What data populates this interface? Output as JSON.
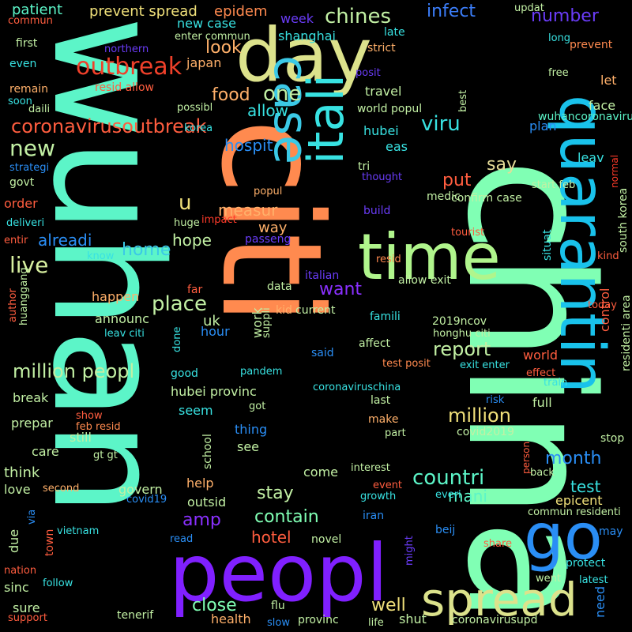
{
  "words": [
    {
      "text": "china",
      "color": "#80ffb4"
    },
    {
      "text": "wuhan",
      "color": "#5cf5c8"
    },
    {
      "text": "citi",
      "color": "#ff8a4f"
    },
    {
      "text": "day",
      "color": "#dce28c"
    },
    {
      "text": "itali",
      "color": "#38e2e2"
    },
    {
      "text": "case",
      "color": "#3bc9e6"
    },
    {
      "text": "quarantin",
      "color": "#19c2eb"
    },
    {
      "text": "time",
      "color": "#b0f58c"
    },
    {
      "text": "go",
      "color": "#2a8ef5"
    },
    {
      "text": "peopl",
      "color": "#8020ff"
    },
    {
      "text": "spread",
      "color": "#dce28c"
    },
    {
      "text": "outbreak",
      "color": "#f0402a"
    },
    {
      "text": "coronavirusoutbreak",
      "color": "#ff5d3f"
    },
    {
      "text": "new",
      "color": "#c2f0a4"
    },
    {
      "text": "chines",
      "color": "#c2f0a4"
    },
    {
      "text": "infect",
      "color": "#3b7df8"
    },
    {
      "text": "number",
      "color": "#6a3cf8"
    },
    {
      "text": "one",
      "color": "#c2f0a4"
    },
    {
      "text": "allow",
      "color": "#38e2e2"
    },
    {
      "text": "food",
      "color": "#ffb06a"
    },
    {
      "text": "look",
      "color": "#ffb06a"
    },
    {
      "text": "viru",
      "color": "#38e2e2"
    },
    {
      "text": "hospit",
      "color": "#2a8ef5"
    },
    {
      "text": "say",
      "color": "#e6dc98"
    },
    {
      "text": "put",
      "color": "#ff5d3f"
    },
    {
      "text": "measur",
      "color": "#ffb06a"
    },
    {
      "text": "u",
      "color": "#f0e07a"
    },
    {
      "text": "alreadi",
      "color": "#2a8ef5"
    },
    {
      "text": "home",
      "color": "#3bc9e6"
    },
    {
      "text": "hope",
      "color": "#c2f0a4"
    },
    {
      "text": "place",
      "color": "#c2f0a4"
    },
    {
      "text": "live",
      "color": "#d8f0a0"
    },
    {
      "text": "want",
      "color": "#8a30ff"
    },
    {
      "text": "report",
      "color": "#c2f0a4"
    },
    {
      "text": "million peopl",
      "color": "#c2f0a4"
    },
    {
      "text": "million",
      "color": "#f0e07a"
    },
    {
      "text": "countri",
      "color": "#5cf5c8"
    },
    {
      "text": "month",
      "color": "#2a8ef5"
    },
    {
      "text": "amp",
      "color": "#8a30ff"
    },
    {
      "text": "contain",
      "color": "#80ffb4"
    },
    {
      "text": "stay",
      "color": "#c2f0a4"
    },
    {
      "text": "test",
      "color": "#38e2e2"
    },
    {
      "text": "close",
      "color": "#80ffb4"
    },
    {
      "text": "well",
      "color": "#f0e07a"
    },
    {
      "text": "hotel",
      "color": "#ff5d3f"
    },
    {
      "text": "mani",
      "color": "#5cf5c8"
    },
    {
      "text": "epicent",
      "color": "#f0e07a"
    },
    {
      "text": "patient",
      "color": "#5cf5c8"
    },
    {
      "text": "prevent spread",
      "color": "#f0e07a"
    },
    {
      "text": "epidem",
      "color": "#ff8a4f"
    },
    {
      "text": "week",
      "color": "#6a3cf8"
    },
    {
      "text": "shanghai",
      "color": "#38e2e2"
    },
    {
      "text": "new case",
      "color": "#38e2e2"
    },
    {
      "text": "enter commun",
      "color": "#c2f0a4"
    },
    {
      "text": "japan",
      "color": "#ffb06a"
    },
    {
      "text": "late",
      "color": "#38e2e2"
    },
    {
      "text": "strict",
      "color": "#ffb06a"
    },
    {
      "text": "travel",
      "color": "#c2f0a4"
    },
    {
      "text": "world popul",
      "color": "#c2f0a4"
    },
    {
      "text": "hubei",
      "color": "#38e2e2"
    },
    {
      "text": "eas",
      "color": "#38e2e2"
    },
    {
      "text": "plan",
      "color": "#2a8ef5"
    },
    {
      "text": "wuhancoronaviru",
      "color": "#5cf5c8"
    },
    {
      "text": "face",
      "color": "#c2f0a4"
    },
    {
      "text": "let",
      "color": "#ffb06a"
    },
    {
      "text": "free",
      "color": "#c2f0a4"
    },
    {
      "text": "long",
      "color": "#38e2e2"
    },
    {
      "text": "prevent",
      "color": "#ff8a4f"
    },
    {
      "text": "updat",
      "color": "#c2f0a4"
    },
    {
      "text": "leav",
      "color": "#38e2e2"
    },
    {
      "text": "normal",
      "color": "#ff3b2a"
    },
    {
      "text": "south korea",
      "color": "#c2f0a4"
    },
    {
      "text": "kind",
      "color": "#ff5d3f"
    },
    {
      "text": "control",
      "color": "#ff5d3f"
    },
    {
      "text": "today",
      "color": "#ff5d3f"
    },
    {
      "text": "residenti area",
      "color": "#c2f0a4"
    },
    {
      "text": "situat",
      "color": "#38e2e2"
    },
    {
      "text": "start feb",
      "color": "#c2f0a4"
    },
    {
      "text": "medic",
      "color": "#c2f0a4"
    },
    {
      "text": "confirm case",
      "color": "#c2f0a4"
    },
    {
      "text": "build",
      "color": "#6a3cf8"
    },
    {
      "text": "tri",
      "color": "#c2f0a4"
    },
    {
      "text": "thought",
      "color": "#6a3cf8"
    },
    {
      "text": "tourist",
      "color": "#ff5d3f"
    },
    {
      "text": "resid",
      "color": "#ff8a4f"
    },
    {
      "text": "allow exit",
      "color": "#c2f0a4"
    },
    {
      "text": "passeng",
      "color": "#6a3cf8"
    },
    {
      "text": "impact",
      "color": "#ff3b2a"
    },
    {
      "text": "huge",
      "color": "#c2f0a4"
    },
    {
      "text": "popul",
      "color": "#ffb06a"
    },
    {
      "text": "way",
      "color": "#ffb06a"
    },
    {
      "text": "know",
      "color": "#38e2e2"
    },
    {
      "text": "far",
      "color": "#ff5d3f"
    },
    {
      "text": "italian",
      "color": "#6a3cf8"
    },
    {
      "text": "data",
      "color": "#c2f0a4"
    },
    {
      "text": "kid",
      "color": "#ffb06a"
    },
    {
      "text": "current",
      "color": "#c2f0a4"
    },
    {
      "text": "famili",
      "color": "#38e2e2"
    },
    {
      "text": "2019ncov",
      "color": "#c2f0a4"
    },
    {
      "text": "honghu citi",
      "color": "#c2f0a4"
    },
    {
      "text": "happen",
      "color": "#ffb06a"
    },
    {
      "text": "announc",
      "color": "#c2f0a4"
    },
    {
      "text": "uk",
      "color": "#c2f0a4"
    },
    {
      "text": "hour",
      "color": "#2a8ef5"
    },
    {
      "text": "work",
      "color": "#c2f0a4"
    },
    {
      "text": "suppli",
      "color": "#c2f0a4"
    },
    {
      "text": "leav citi",
      "color": "#38e2e2"
    },
    {
      "text": "done",
      "color": "#38e2e2"
    },
    {
      "text": "said",
      "color": "#2a8ef5"
    },
    {
      "text": "affect",
      "color": "#c2f0a4"
    },
    {
      "text": "world",
      "color": "#ff5d3f"
    },
    {
      "text": "test posit",
      "color": "#ff8a4f"
    },
    {
      "text": "exit enter",
      "color": "#38e2e2"
    },
    {
      "text": "effect",
      "color": "#ff5d3f"
    },
    {
      "text": "train",
      "color": "#38e2e2"
    },
    {
      "text": "author",
      "color": "#ff5d3f"
    },
    {
      "text": "huanggang",
      "color": "#c2f0a4"
    },
    {
      "text": "good",
      "color": "#38e2e2"
    },
    {
      "text": "pandem",
      "color": "#38e2e2"
    },
    {
      "text": "hubei provinc",
      "color": "#c2f0a4"
    },
    {
      "text": "coronaviruschina",
      "color": "#38e2e2"
    },
    {
      "text": "break",
      "color": "#c2f0a4"
    },
    {
      "text": "seem",
      "color": "#38e2e2"
    },
    {
      "text": "got",
      "color": "#c2f0a4"
    },
    {
      "text": "last",
      "color": "#c2f0a4"
    },
    {
      "text": "full",
      "color": "#c2f0a4"
    },
    {
      "text": "risk",
      "color": "#2a8ef5"
    },
    {
      "text": "prepar",
      "color": "#c2f0a4"
    },
    {
      "text": "show",
      "color": "#ff5d3f"
    },
    {
      "text": "feb resid",
      "color": "#ff8a4f"
    },
    {
      "text": "thing",
      "color": "#2a8ef5"
    },
    {
      "text": "make",
      "color": "#ffb06a"
    },
    {
      "text": "part",
      "color": "#c2f0a4"
    },
    {
      "text": "covid2019",
      "color": "#c2f0a4"
    },
    {
      "text": "stop",
      "color": "#c2f0a4"
    },
    {
      "text": "person",
      "color": "#ff5d3f"
    },
    {
      "text": "still",
      "color": "#c2f0a4"
    },
    {
      "text": "care",
      "color": "#c2f0a4"
    },
    {
      "text": "gt gt",
      "color": "#c2f0a4"
    },
    {
      "text": "school",
      "color": "#c2f0a4"
    },
    {
      "text": "see",
      "color": "#c2f0a4"
    },
    {
      "text": "think",
      "color": "#c2f0a4"
    },
    {
      "text": "come",
      "color": "#c2f0a4"
    },
    {
      "text": "interest",
      "color": "#c2f0a4"
    },
    {
      "text": "back",
      "color": "#c2f0a4"
    },
    {
      "text": "love",
      "color": "#c2f0a4"
    },
    {
      "text": "second",
      "color": "#ffb06a"
    },
    {
      "text": "govern",
      "color": "#c2f0a4"
    },
    {
      "text": "help",
      "color": "#ffb06a"
    },
    {
      "text": "covid19",
      "color": "#2a8ef5"
    },
    {
      "text": "event",
      "color": "#ff5d3f"
    },
    {
      "text": "growth",
      "color": "#38e2e2"
    },
    {
      "text": "everi",
      "color": "#38e2e2"
    },
    {
      "text": "via",
      "color": "#2a8ef5"
    },
    {
      "text": "outsid",
      "color": "#c2f0a4"
    },
    {
      "text": "iran",
      "color": "#2a8ef5"
    },
    {
      "text": "commun residenti",
      "color": "#c2f0a4"
    },
    {
      "text": "may",
      "color": "#2a8ef5"
    },
    {
      "text": "due",
      "color": "#c2f0a4"
    },
    {
      "text": "town",
      "color": "#ff5d3f"
    },
    {
      "text": "vietnam",
      "color": "#38e2e2"
    },
    {
      "text": "read",
      "color": "#2a8ef5"
    },
    {
      "text": "novel",
      "color": "#c2f0a4"
    },
    {
      "text": "beij",
      "color": "#2a8ef5"
    },
    {
      "text": "share",
      "color": "#ff5d3f"
    },
    {
      "text": "nation",
      "color": "#ff5d3f"
    },
    {
      "text": "might",
      "color": "#6a3cf8"
    },
    {
      "text": "protect",
      "color": "#38e2e2"
    },
    {
      "text": "need",
      "color": "#2a8ef5"
    },
    {
      "text": "sinc",
      "color": "#c2f0a4"
    },
    {
      "text": "follow",
      "color": "#38e2e2"
    },
    {
      "text": "went",
      "color": "#c2f0a4"
    },
    {
      "text": "latest",
      "color": "#38e2e2"
    },
    {
      "text": "sure",
      "color": "#c2f0a4"
    },
    {
      "text": "support",
      "color": "#ff5d3f"
    },
    {
      "text": "tenerif",
      "color": "#c2f0a4"
    },
    {
      "text": "health",
      "color": "#ffb06a"
    },
    {
      "text": "flu",
      "color": "#c2f0a4"
    },
    {
      "text": "slow",
      "color": "#2a8ef5"
    },
    {
      "text": "provinc",
      "color": "#c2f0a4"
    },
    {
      "text": "life",
      "color": "#c2f0a4"
    },
    {
      "text": "shut",
      "color": "#c2f0a4"
    },
    {
      "text": "coronavirusupd",
      "color": "#c2f0a4"
    },
    {
      "text": "commun",
      "color": "#ff5d3f"
    },
    {
      "text": "first",
      "color": "#c2f0a4"
    },
    {
      "text": "even",
      "color": "#38e2e2"
    },
    {
      "text": "northern",
      "color": "#6a3cf8"
    },
    {
      "text": "remain",
      "color": "#ffb06a"
    },
    {
      "text": "resid allow",
      "color": "#ff5d3f"
    },
    {
      "text": "soon",
      "color": "#38e2e2"
    },
    {
      "text": "daili",
      "color": "#c2f0a4"
    },
    {
      "text": "possibl",
      "color": "#c2f0a4"
    },
    {
      "text": "posit",
      "color": "#6a3cf8"
    },
    {
      "text": "best",
      "color": "#c2f0a4"
    },
    {
      "text": "korea",
      "color": "#38e2e2"
    },
    {
      "text": "strategi",
      "color": "#2a8ef5"
    },
    {
      "text": "govt",
      "color": "#c2f0a4"
    },
    {
      "text": "order",
      "color": "#ff5d3f"
    },
    {
      "text": "deliveri",
      "color": "#38e2e2"
    },
    {
      "text": "entir",
      "color": "#ff5d3f"
    }
  ]
}
